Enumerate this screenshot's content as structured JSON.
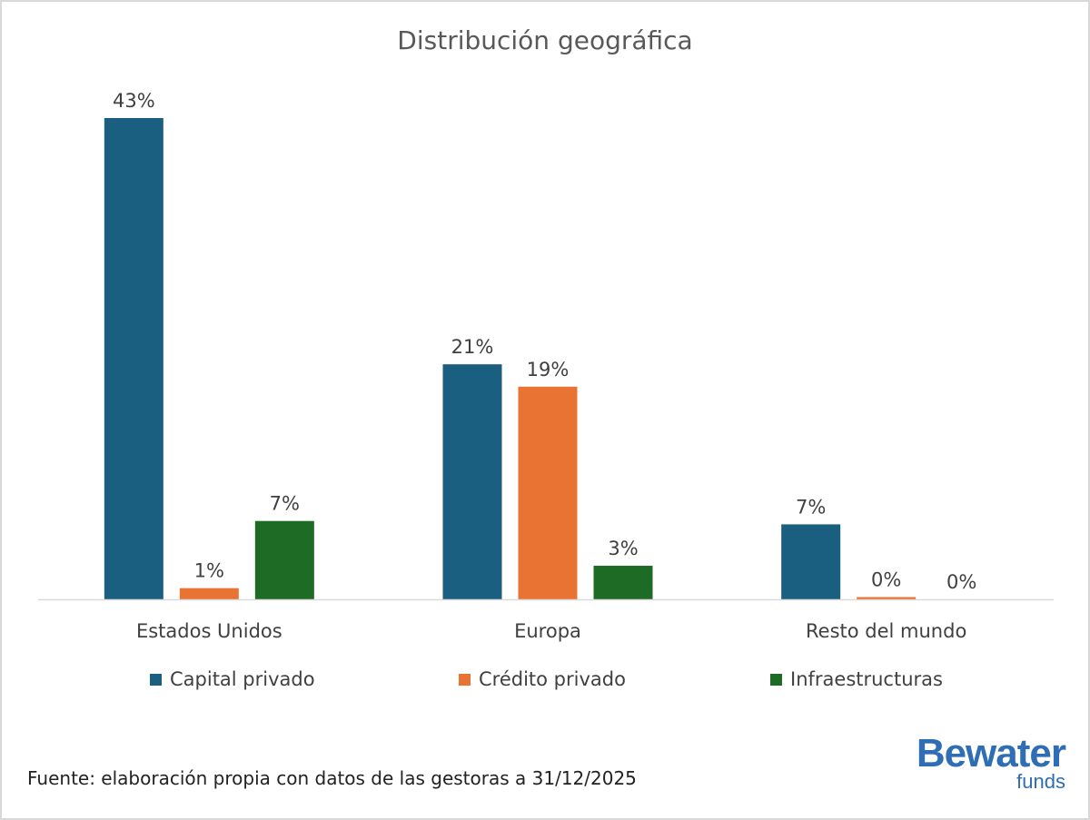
{
  "chart_data": {
    "type": "bar",
    "title": "Distribución geográfica",
    "categories": [
      "Estados Unidos",
      "Europa",
      "Resto del mundo"
    ],
    "series": [
      {
        "name": "Capital privado",
        "color": "#1a5e80",
        "values": [
          43,
          21,
          6.7
        ],
        "labels": [
          "43%",
          "21%",
          "7%"
        ]
      },
      {
        "name": "Crédito privado",
        "color": "#e97332",
        "values": [
          1,
          19,
          0.2
        ],
        "labels": [
          "1%",
          "19%",
          "0%"
        ]
      },
      {
        "name": "Infraestructuras",
        "color": "#1e6b25",
        "values": [
          7,
          3,
          0
        ],
        "labels": [
          "7%",
          "3%",
          "0%"
        ]
      }
    ],
    "ylim": [
      0,
      43
    ],
    "xlabel": "",
    "ylabel": "",
    "grid": false,
    "legend": "bottom"
  },
  "footer": {
    "source": "Fuente: elaboración propia con datos de las gestoras a 31/12/2025",
    "logo_main": "Bewater",
    "logo_sub": "funds"
  }
}
